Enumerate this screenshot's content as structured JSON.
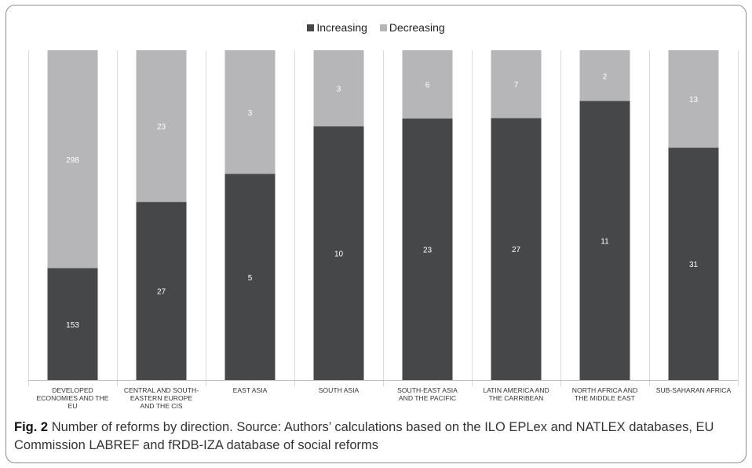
{
  "legend": {
    "items": [
      {
        "label": "Increasing",
        "color": "#464749"
      },
      {
        "label": "Decreasing",
        "color": "#b6b6b8"
      }
    ]
  },
  "caption": {
    "label": "Fig. 2",
    "text": "Number of reforms by direction. Source: Authors’ calculations based on the ILO EPLex and NATLEX databases, EU Commission LABREF and fRDB-IZA database of social reforms"
  },
  "chart_data": {
    "type": "bar",
    "stacked": "percent",
    "categories": [
      [
        "DEVELOPED",
        "ECONOMIES AND THE",
        "EU"
      ],
      [
        "CENTRAL AND SOUTH-",
        "EASTERN EUROPE",
        "AND THE CIS"
      ],
      [
        "EAST ASIA"
      ],
      [
        "SOUTH ASIA"
      ],
      [
        "SOUTH-EAST ASIA",
        "AND THE PACIFIC"
      ],
      [
        "LATIN AMERICA AND",
        "THE CARRIBEAN"
      ],
      [
        "NORTH AFRICA AND",
        "THE MIDDLE EAST"
      ],
      [
        "SUB-SAHARAN AFRICA"
      ]
    ],
    "series": [
      {
        "name": "Increasing",
        "color": "#464749",
        "values": [
          153,
          27,
          5,
          10,
          23,
          27,
          11,
          31
        ]
      },
      {
        "name": "Decreasing",
        "color": "#b6b6b8",
        "values": [
          298,
          23,
          3,
          3,
          6,
          7,
          2,
          13
        ]
      }
    ],
    "legend_position": "top",
    "grid": false
  }
}
